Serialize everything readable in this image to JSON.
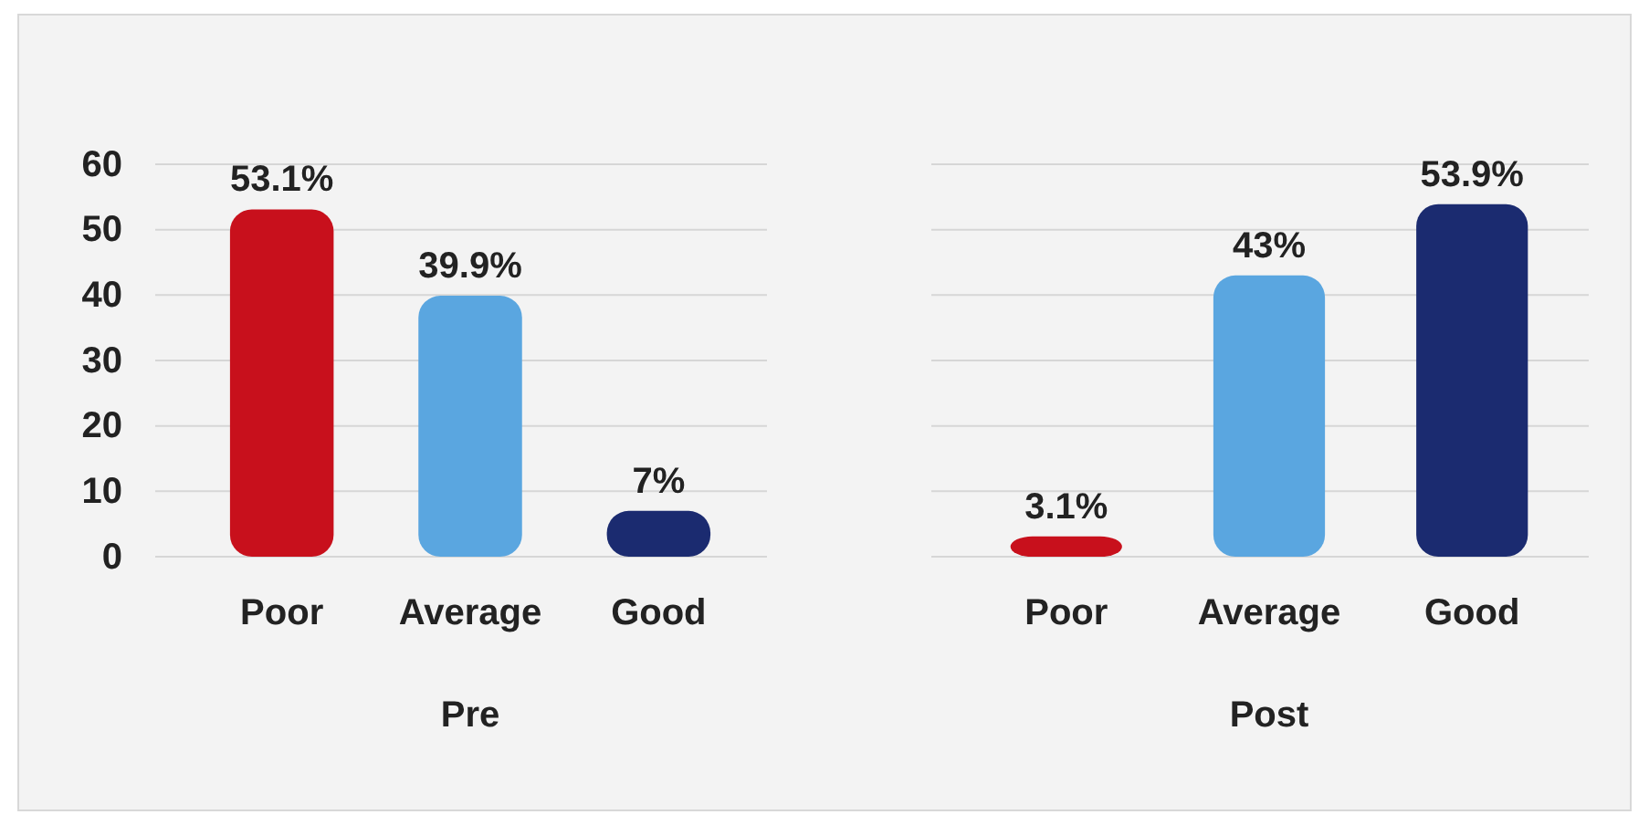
{
  "chart_data": [
    {
      "type": "bar",
      "xlabel": "Pre",
      "categories": [
        "Poor",
        "Average",
        "Good"
      ],
      "values": [
        53.1,
        39.9,
        7
      ],
      "colors": [
        "#c8101c",
        "#5aa6e0",
        "#1b2b70"
      ],
      "value_labels": [
        "53.1%",
        "39.9%",
        "7%"
      ],
      "ylim": [
        0,
        60
      ],
      "yticks": [
        0,
        10,
        20,
        30,
        40,
        50,
        60
      ],
      "grid": "y"
    },
    {
      "type": "bar",
      "xlabel": "Post",
      "categories": [
        "Poor",
        "Average",
        "Good"
      ],
      "values": [
        3.1,
        43,
        53.9
      ],
      "colors": [
        "#c8101c",
        "#5aa6e0",
        "#1b2b70"
      ],
      "value_labels": [
        "3.1%",
        "43%",
        "53.9%"
      ],
      "ylim": [
        0,
        60
      ],
      "yticks": [
        0,
        10,
        20,
        30,
        40,
        50,
        60
      ],
      "grid": "y",
      "tick_labels": "x"
    }
  ]
}
